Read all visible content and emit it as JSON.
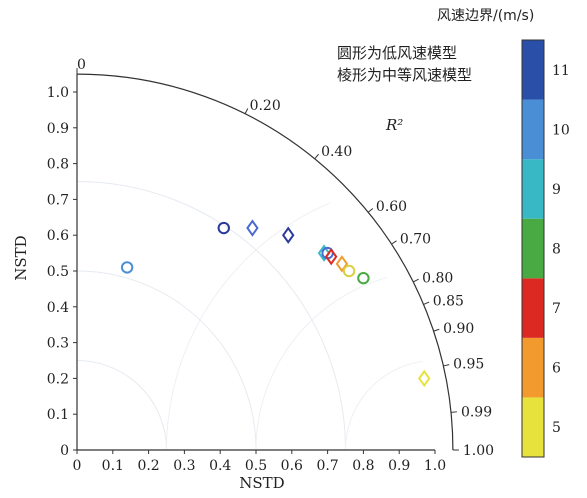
{
  "chart_data": {
    "type": "scatter",
    "subtype": "taylor-diagram",
    "xlabel": "NSTD",
    "ylabel": "NSTD",
    "xlim": [
      0,
      1.0
    ],
    "ylim": [
      0,
      1.0
    ],
    "x_ticks": [
      "0",
      "0.1",
      "0.2",
      "0.3",
      "0.4",
      "0.5",
      "0.6",
      "0.7",
      "0.8",
      "0.9",
      "1.0"
    ],
    "y_ticks": [
      "0",
      "0.1",
      "0.2",
      "0.3",
      "0.4",
      "0.5",
      "0.6",
      "0.7",
      "0.8",
      "0.9",
      "1.0"
    ],
    "r2_label": "R²",
    "r2_ticks": [
      {
        "value": 0,
        "label": "0"
      },
      {
        "value": 0.2,
        "label": "0.20"
      },
      {
        "value": 0.4,
        "label": "0.40"
      },
      {
        "value": 0.6,
        "label": "0.60"
      },
      {
        "value": 0.7,
        "label": "0.70"
      },
      {
        "value": 0.8,
        "label": "0.80"
      },
      {
        "value": 0.85,
        "label": "0.85"
      },
      {
        "value": 0.9,
        "label": "0.90"
      },
      {
        "value": 0.95,
        "label": "0.95"
      },
      {
        "value": 0.99,
        "label": "0.99"
      },
      {
        "value": 1.0,
        "label": "1.00"
      }
    ],
    "legend_lines": [
      "圆形为低风速模型",
      "棱形为中等风速模型"
    ],
    "colorbar": {
      "title": "风速边界/(m/s)",
      "ticks": [
        "5",
        "6",
        "7",
        "8",
        "9",
        "10",
        "11"
      ],
      "colors": [
        "#e8e23c",
        "#f29a2e",
        "#dc2a23",
        "#49a942",
        "#38b8c4",
        "#4a8fd6",
        "#2a4fa8"
      ]
    },
    "points": [
      {
        "x": 0.14,
        "y": 0.51,
        "marker": "circle",
        "color": "#4a8fd6"
      },
      {
        "x": 0.41,
        "y": 0.62,
        "marker": "circle",
        "color": "#2a3a9a"
      },
      {
        "x": 0.49,
        "y": 0.62,
        "marker": "diamond",
        "color": "#4a6ad0"
      },
      {
        "x": 0.59,
        "y": 0.6,
        "marker": "diamond",
        "color": "#2a3a9a"
      },
      {
        "x": 0.69,
        "y": 0.55,
        "marker": "diamond",
        "color": "#38b8c4"
      },
      {
        "x": 0.7,
        "y": 0.55,
        "marker": "circle",
        "color": "#4a6ad0"
      },
      {
        "x": 0.71,
        "y": 0.54,
        "marker": "diamond",
        "color": "#dc2a23"
      },
      {
        "x": 0.74,
        "y": 0.52,
        "marker": "diamond",
        "color": "#f29a2e"
      },
      {
        "x": 0.76,
        "y": 0.5,
        "marker": "circle",
        "color": "#d8d040"
      },
      {
        "x": 0.8,
        "y": 0.48,
        "marker": "circle",
        "color": "#49a942"
      },
      {
        "x": 0.97,
        "y": 0.2,
        "marker": "diamond",
        "color": "#e8e23c"
      }
    ]
  }
}
